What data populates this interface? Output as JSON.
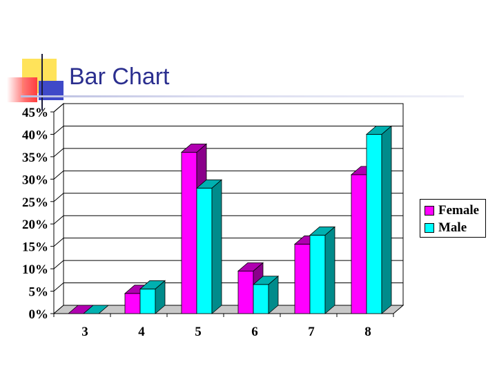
{
  "slide": {
    "title": "Bar Chart"
  },
  "colors": {
    "title": "#2b2f8f",
    "female_front": "#ff00ff",
    "female_side": "#8a008a",
    "female_top": "#b000b0",
    "male_front": "#00ffff",
    "male_side": "#008b8b",
    "male_top": "#00b0b0"
  },
  "chart_data": {
    "type": "bar",
    "style": "3d-clustered-column",
    "categories": [
      "3",
      "4",
      "5",
      "6",
      "7",
      "8"
    ],
    "series": [
      {
        "name": "Female",
        "values": [
          0,
          4.5,
          36,
          9.5,
          15.5,
          31
        ]
      },
      {
        "name": "Male",
        "values": [
          0,
          5.5,
          28,
          6.5,
          17.5,
          40
        ]
      }
    ],
    "yticks": [
      "0%",
      "5%",
      "10%",
      "15%",
      "20%",
      "25%",
      "30%",
      "35%",
      "40%",
      "45%"
    ],
    "ylim": [
      0,
      45
    ],
    "grid": true,
    "legend_position": "right"
  }
}
